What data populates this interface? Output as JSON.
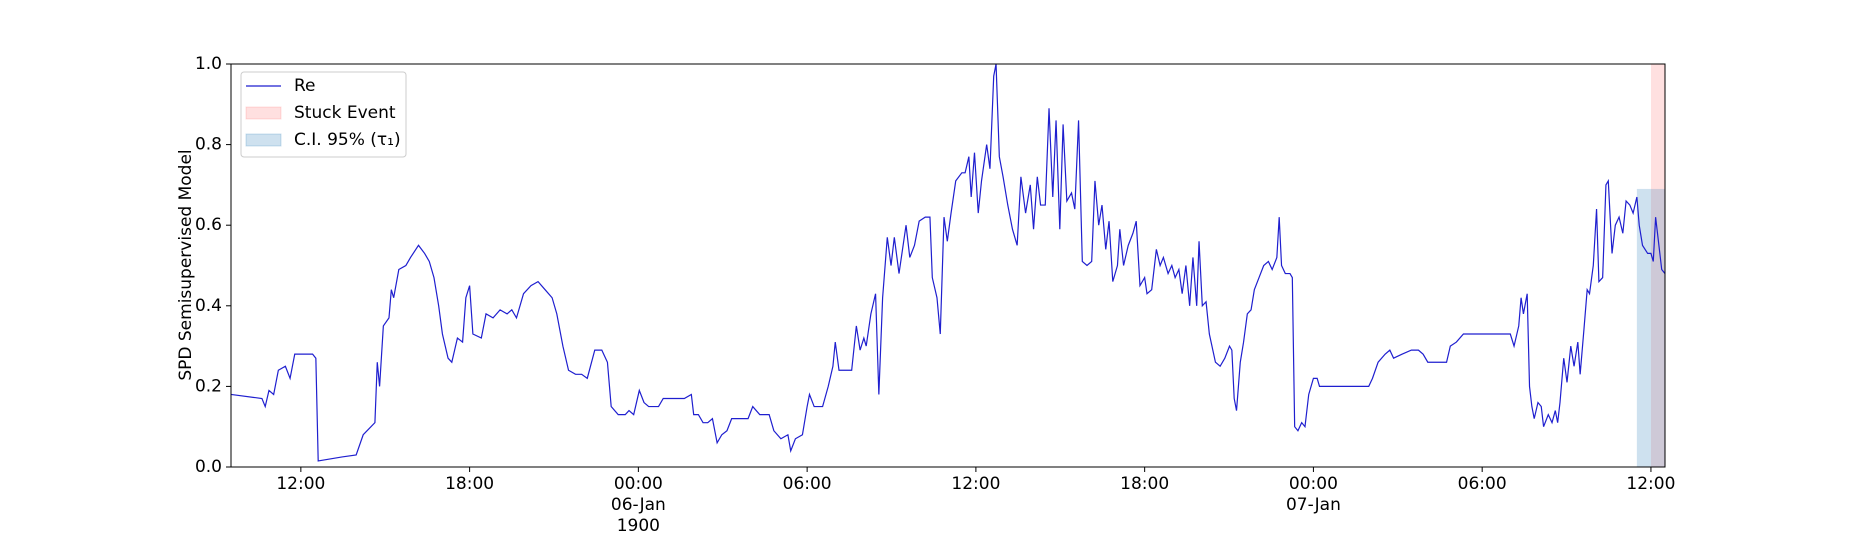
{
  "chart_data": {
    "type": "line",
    "ylabel": "SPD Semisupervised Model",
    "xlim": [
      "1900-01-05T09:31",
      "1900-01-07T12:30"
    ],
    "ylim": [
      0,
      1
    ],
    "xticks": [
      {
        "value": "1900-01-05T12:00",
        "label": "12:00"
      },
      {
        "value": "1900-01-05T18:00",
        "label": "18:00"
      },
      {
        "value": "1900-01-06T00:00",
        "label": "00:00\n06-Jan\n1900"
      },
      {
        "value": "1900-01-06T06:00",
        "label": "06:00"
      },
      {
        "value": "1900-01-06T12:00",
        "label": "12:00"
      },
      {
        "value": "1900-01-06T18:00",
        "label": "18:00"
      },
      {
        "value": "1900-01-07T00:00",
        "label": "00:00\n07-Jan"
      },
      {
        "value": "1900-01-07T06:00",
        "label": "06:00"
      },
      {
        "value": "1900-01-07T12:00",
        "label": "12:00"
      }
    ],
    "yticks": [
      {
        "value": 0,
        "label": "0.0"
      },
      0.2,
      0.4,
      0.6,
      0.8,
      {
        "value": 1,
        "label": "1.0"
      }
    ],
    "legend": "upper left",
    "x": [
      "1900-01-05T09:31",
      "1900-01-05T10:37",
      "1900-01-05T10:44",
      "1900-01-05T10:52",
      "1900-01-05T11:02",
      "1900-01-05T11:12",
      "1900-01-05T11:27",
      "1900-01-05T11:37",
      "1900-01-05T11:47",
      "1900-01-05T12:25",
      "1900-01-05T12:32",
      "1900-01-05T12:37",
      "1900-01-05T13:28",
      "1900-01-05T13:58",
      "1900-01-05T14:13",
      "1900-01-05T14:38",
      "1900-01-05T14:43",
      "1900-01-05T14:48",
      "1900-01-05T14:56",
      "1900-01-05T15:08",
      "1900-01-05T15:13",
      "1900-01-05T15:18",
      "1900-01-05T15:29",
      "1900-01-05T15:44",
      "1900-01-05T15:54",
      "1900-01-05T16:11",
      "1900-01-05T16:24",
      "1900-01-05T16:34",
      "1900-01-05T16:44",
      "1900-01-05T16:54",
      "1900-01-05T17:02",
      "1900-01-05T17:14",
      "1900-01-05T17:22",
      "1900-01-05T17:34",
      "1900-01-05T17:45",
      "1900-01-05T17:52",
      "1900-01-05T18:00",
      "1900-01-05T18:07",
      "1900-01-05T18:25",
      "1900-01-05T18:35",
      "1900-01-05T18:50",
      "1900-01-05T19:05",
      "1900-01-05T19:20",
      "1900-01-05T19:30",
      "1900-01-05T19:40",
      "1900-01-05T19:55",
      "1900-01-05T20:11",
      "1900-01-05T20:26",
      "1900-01-05T20:41",
      "1900-01-05T20:56",
      "1900-01-05T21:06",
      "1900-01-05T21:19",
      "1900-01-05T21:31",
      "1900-01-05T21:46",
      "1900-01-05T21:59",
      "1900-01-05T22:11",
      "1900-01-05T22:27",
      "1900-01-05T22:42",
      "1900-01-05T22:54",
      "1900-01-05T23:02",
      "1900-01-05T23:17",
      "1900-01-05T23:32",
      "1900-01-05T23:40",
      "1900-01-05T23:50",
      "1900-01-06T00:02",
      "1900-01-06T00:12",
      "1900-01-06T00:22",
      "1900-01-06T00:43",
      "1900-01-06T00:53",
      "1900-01-06T01:13",
      "1900-01-06T01:38",
      "1900-01-06T01:53",
      "1900-01-06T01:58",
      "1900-01-06T02:08",
      "1900-01-06T02:18",
      "1900-01-06T02:28",
      "1900-01-06T02:38",
      "1900-01-06T02:48",
      "1900-01-06T02:58",
      "1900-01-06T03:09",
      "1900-01-06T03:19",
      "1900-01-06T03:39",
      "1900-01-06T03:54",
      "1900-01-06T04:04",
      "1900-01-06T04:19",
      "1900-01-06T04:39",
      "1900-01-06T04:49",
      "1900-01-06T05:04",
      "1900-01-06T05:19",
      "1900-01-06T05:25",
      "1900-01-06T05:35",
      "1900-01-06T05:50",
      "1900-01-06T06:00",
      "1900-01-06T06:05",
      "1900-01-06T06:15",
      "1900-01-06T06:33",
      "1900-01-06T06:45",
      "1900-01-06T06:55",
      "1900-01-06T07:00",
      "1900-01-06T07:08",
      "1900-01-06T07:35",
      "1900-01-06T07:45",
      "1900-01-06T07:53",
      "1900-01-06T08:01",
      "1900-01-06T08:06",
      "1900-01-06T08:16",
      "1900-01-06T08:26",
      "1900-01-06T08:33",
      "1900-01-06T08:41",
      "1900-01-06T08:51",
      "1900-01-06T08:59",
      "1900-01-06T09:06",
      "1900-01-06T09:16",
      "1900-01-06T09:31",
      "1900-01-06T09:39",
      "1900-01-06T09:49",
      "1900-01-06T09:59",
      "1900-01-06T10:12",
      "1900-01-06T10:22",
      "1900-01-06T10:27",
      "1900-01-06T10:37",
      "1900-01-06T10:44",
      "1900-01-06T10:52",
      "1900-01-06T10:59",
      "1900-01-06T11:07",
      "1900-01-06T11:17",
      "1900-01-06T11:30",
      "1900-01-06T11:37",
      "1900-01-06T11:45",
      "1900-01-06T11:50",
      "1900-01-06T11:57",
      "1900-01-06T12:05",
      "1900-01-06T12:12",
      "1900-01-06T12:23",
      "1900-01-06T12:30",
      "1900-01-06T12:38",
      "1900-01-06T12:43",
      "1900-01-06T12:50",
      "1900-01-06T12:58",
      "1900-01-06T13:08",
      "1900-01-06T13:18",
      "1900-01-06T13:28",
      "1900-01-06T13:36",
      "1900-01-06T13:46",
      "1900-01-06T13:56",
      "1900-01-06T14:03",
      "1900-01-06T14:11",
      "1900-01-06T14:18",
      "1900-01-06T14:28",
      "1900-01-06T14:36",
      "1900-01-06T14:44",
      "1900-01-06T14:51",
      "1900-01-06T14:59",
      "1900-01-06T15:06",
      "1900-01-06T15:14",
      "1900-01-06T15:24",
      "1900-01-06T15:31",
      "1900-01-06T15:39",
      "1900-01-06T15:47",
      "1900-01-06T15:57",
      "1900-01-06T16:07",
      "1900-01-06T16:14",
      "1900-01-06T16:22",
      "1900-01-06T16:29",
      "1900-01-06T16:37",
      "1900-01-06T16:44",
      "1900-01-06T16:52",
      "1900-01-06T17:02",
      "1900-01-06T17:07",
      "1900-01-06T17:15",
      "1900-01-06T17:25",
      "1900-01-06T17:35",
      "1900-01-06T17:42",
      "1900-01-06T17:50",
      "1900-01-06T18:00",
      "1900-01-06T18:05",
      "1900-01-06T18:15",
      "1900-01-06T18:25",
      "1900-01-06T18:33",
      "1900-01-06T18:40",
      "1900-01-06T18:50",
      "1900-01-06T18:58",
      "1900-01-06T19:05",
      "1900-01-06T19:13",
      "1900-01-06T19:20",
      "1900-01-06T19:28",
      "1900-01-06T19:36",
      "1900-01-06T19:43",
      "1900-01-06T19:51",
      "1900-01-06T19:56",
      "1900-01-06T20:03",
      "1900-01-06T20:11",
      "1900-01-06T20:18",
      "1900-01-06T20:31",
      "1900-01-06T20:41",
      "1900-01-06T20:51",
      "1900-01-06T21:01",
      "1900-01-06T21:06",
      "1900-01-06T21:11",
      "1900-01-06T21:16",
      "1900-01-06T21:24",
      "1900-01-06T21:31",
      "1900-01-06T21:39",
      "1900-01-06T21:47",
      "1900-01-06T21:54",
      "1900-01-06T22:04",
      "1900-01-06T22:14",
      "1900-01-06T22:24",
      "1900-01-06T22:32",
      "1900-01-06T22:42",
      "1900-01-06T22:47",
      "1900-01-06T22:52",
      "1900-01-06T23:00",
      "1900-01-06T23:10",
      "1900-01-06T23:15",
      "1900-01-06T23:20",
      "1900-01-06T23:27",
      "1900-01-06T23:35",
      "1900-01-06T23:42",
      "1900-01-06T23:50",
      "1900-01-07T00:00",
      "1900-01-07T00:08",
      "1900-01-07T00:13",
      "1900-01-07T00:28",
      "1900-01-07T01:08",
      "1900-01-07T01:58",
      "1900-01-07T02:06",
      "1900-01-07T02:18",
      "1900-01-07T02:33",
      "1900-01-07T02:43",
      "1900-01-07T02:51",
      "1900-01-07T03:09",
      "1900-01-07T03:29",
      "1900-01-07T03:44",
      "1900-01-07T03:54",
      "1900-01-07T04:04",
      "1900-01-07T04:44",
      "1900-01-07T04:52",
      "1900-01-07T05:05",
      "1900-01-07T05:20",
      "1900-01-07T05:45",
      "1900-01-07T06:50",
      "1900-01-07T07:00",
      "1900-01-07T07:08",
      "1900-01-07T07:18",
      "1900-01-07T07:23",
      "1900-01-07T07:28",
      "1900-01-07T07:36",
      "1900-01-07T07:41",
      "1900-01-07T07:46",
      "1900-01-07T07:51",
      "1900-01-07T07:59",
      "1900-01-07T08:06",
      "1900-01-07T08:11",
      "1900-01-07T08:21",
      "1900-01-07T08:29",
      "1900-01-07T08:36",
      "1900-01-07T08:41",
      "1900-01-07T08:46",
      "1900-01-07T08:54",
      "1900-01-07T09:01",
      "1900-01-07T09:09",
      "1900-01-07T09:16",
      "1900-01-07T09:24",
      "1900-01-07T09:29",
      "1900-01-07T09:37",
      "1900-01-07T09:44",
      "1900-01-07T09:49",
      "1900-01-07T09:57",
      "1900-01-07T10:04",
      "1900-01-07T10:09",
      "1900-01-07T10:17",
      "1900-01-07T10:24",
      "1900-01-07T10:29",
      "1900-01-07T10:37",
      "1900-01-07T10:44",
      "1900-01-07T10:52",
      "1900-01-07T11:00",
      "1900-01-07T11:07",
      "1900-01-07T11:15",
      "1900-01-07T11:22",
      "1900-01-07T11:30",
      "1900-01-07T11:35",
      "1900-01-07T11:42",
      "1900-01-07T11:53",
      "1900-01-07T12:00",
      "1900-01-07T12:05",
      "1900-01-07T12:10",
      "1900-01-07T12:18",
      "1900-01-07T12:23",
      "1900-01-07T12:30"
    ],
    "series": [
      {
        "name": "Re",
        "color": "#1f1fcf",
        "values": [
          0.18,
          0.17,
          0.15,
          0.19,
          0.18,
          0.24,
          0.25,
          0.22,
          0.28,
          0.28,
          0.27,
          0.015,
          0.025,
          0.03,
          0.08,
          0.11,
          0.26,
          0.2,
          0.35,
          0.37,
          0.44,
          0.42,
          0.49,
          0.5,
          0.52,
          0.55,
          0.53,
          0.51,
          0.47,
          0.4,
          0.33,
          0.27,
          0.26,
          0.32,
          0.31,
          0.42,
          0.45,
          0.33,
          0.32,
          0.38,
          0.37,
          0.39,
          0.38,
          0.39,
          0.37,
          0.43,
          0.45,
          0.46,
          0.44,
          0.42,
          0.38,
          0.3,
          0.24,
          0.23,
          0.23,
          0.22,
          0.29,
          0.29,
          0.26,
          0.15,
          0.13,
          0.13,
          0.14,
          0.13,
          0.19,
          0.16,
          0.15,
          0.15,
          0.17,
          0.17,
          0.17,
          0.18,
          0.13,
          0.13,
          0.11,
          0.11,
          0.12,
          0.06,
          0.08,
          0.09,
          0.12,
          0.12,
          0.12,
          0.15,
          0.13,
          0.13,
          0.09,
          0.07,
          0.08,
          0.04,
          0.07,
          0.08,
          0.15,
          0.18,
          0.15,
          0.15,
          0.2,
          0.25,
          0.31,
          0.24,
          0.24,
          0.35,
          0.29,
          0.32,
          0.3,
          0.38,
          0.43,
          0.18,
          0.42,
          0.57,
          0.5,
          0.57,
          0.48,
          0.6,
          0.52,
          0.55,
          0.61,
          0.62,
          0.62,
          0.47,
          0.42,
          0.33,
          0.62,
          0.56,
          0.63,
          0.71,
          0.73,
          0.73,
          0.77,
          0.67,
          0.78,
          0.63,
          0.71,
          0.8,
          0.74,
          0.97,
          1.0,
          0.77,
          0.72,
          0.65,
          0.59,
          0.55,
          0.72,
          0.63,
          0.7,
          0.59,
          0.72,
          0.65,
          0.65,
          0.89,
          0.67,
          0.86,
          0.59,
          0.85,
          0.66,
          0.68,
          0.64,
          0.86,
          0.51,
          0.5,
          0.51,
          0.71,
          0.6,
          0.65,
          0.54,
          0.61,
          0.46,
          0.5,
          0.59,
          0.5,
          0.55,
          0.58,
          0.61,
          0.45,
          0.47,
          0.43,
          0.44,
          0.54,
          0.5,
          0.52,
          0.48,
          0.5,
          0.47,
          0.49,
          0.43,
          0.5,
          0.4,
          0.52,
          0.4,
          0.56,
          0.4,
          0.41,
          0.33,
          0.26,
          0.25,
          0.27,
          0.3,
          0.29,
          0.17,
          0.14,
          0.26,
          0.31,
          0.38,
          0.39,
          0.44,
          0.47,
          0.5,
          0.51,
          0.49,
          0.52,
          0.62,
          0.5,
          0.48,
          0.48,
          0.47,
          0.1,
          0.09,
          0.11,
          0.1,
          0.18,
          0.22,
          0.22,
          0.2,
          0.2,
          0.2,
          0.2,
          0.22,
          0.26,
          0.28,
          0.29,
          0.27,
          0.28,
          0.29,
          0.29,
          0.28,
          0.26,
          0.26,
          0.3,
          0.31,
          0.33,
          0.33,
          0.33,
          0.33,
          0.3,
          0.35,
          0.42,
          0.38,
          0.43,
          0.2,
          0.15,
          0.12,
          0.16,
          0.15,
          0.1,
          0.13,
          0.11,
          0.14,
          0.11,
          0.16,
          0.27,
          0.21,
          0.3,
          0.25,
          0.31,
          0.23,
          0.34,
          0.44,
          0.43,
          0.5,
          0.64,
          0.46,
          0.47,
          0.7,
          0.71,
          0.53,
          0.6,
          0.62,
          0.58,
          0.66,
          0.65,
          0.63,
          0.67,
          0.6,
          0.55,
          0.53,
          0.53,
          0.51,
          0.62,
          0.54,
          0.49,
          0.48
        ]
      }
    ],
    "spans": [
      {
        "name": "Stuck Event",
        "color": "#ff0000",
        "x": [
          "1900-01-07T12:00",
          "1900-01-07T12:30"
        ]
      },
      {
        "name": "C.I. 95% (τ₁)",
        "color": "#1f77b4",
        "x": [
          "1900-01-07T11:30",
          "1900-01-07T12:30"
        ],
        "y": [
          0,
          0.69
        ]
      }
    ]
  }
}
